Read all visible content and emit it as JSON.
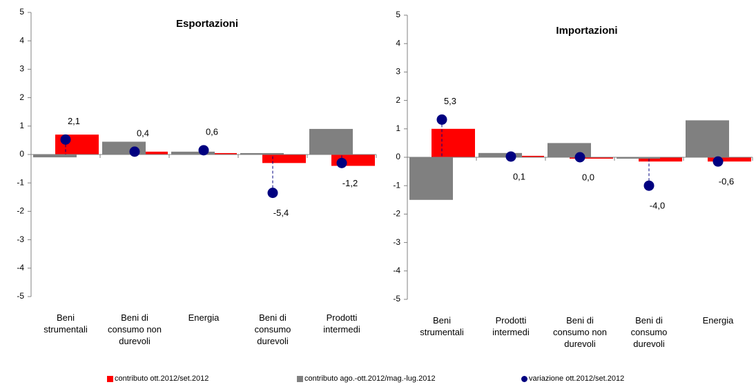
{
  "chart_data": [
    {
      "type": "bar",
      "title": "Esportazioni",
      "categories": [
        "Beni strumentali",
        "Beni di consumo non durevoli",
        "Energia",
        "Beni di consumo durevoli",
        "Prodotti intermedi"
      ],
      "series": [
        {
          "name": "contributo ott.2012/set.2012",
          "color": "#ff0000",
          "values": [
            0.7,
            0.1,
            0.05,
            -0.3,
            -0.4
          ]
        },
        {
          "name": "contributo ago.-ott.2012/mag.-lug.2012",
          "color": "#808080",
          "values": [
            -0.1,
            0.45,
            0.1,
            0.05,
            0.9
          ]
        },
        {
          "name": "variazione ott.2012/set.2012",
          "color": "#000080",
          "axis": "y2",
          "values": [
            2.1,
            0.4,
            0.6,
            -5.4,
            -1.2
          ],
          "value_labels": [
            "2,1",
            "0,4",
            "0,6",
            "-5,4",
            "-1,2"
          ]
        }
      ],
      "ylim": [
        -5,
        5
      ],
      "yticks": [
        -5,
        -4,
        -3,
        -2,
        -1,
        0,
        1,
        2,
        3,
        4,
        5
      ],
      "y2lim": [
        -20,
        20
      ]
    },
    {
      "type": "bar",
      "title": "Importazioni",
      "categories": [
        "Beni strumentali",
        "Prodotti intermedi",
        "Beni di consumo non durevoli",
        "Beni di consumo durevoli",
        "Energia"
      ],
      "series": [
        {
          "name": "contributo ott.2012/set.2012",
          "color": "#ff0000",
          "values": [
            1.0,
            0.05,
            -0.05,
            -0.15,
            -0.15
          ]
        },
        {
          "name": "contributo ago.-ott.2012/mag.-lug.2012",
          "color": "#808080",
          "values": [
            -1.5,
            0.15,
            0.5,
            -0.05,
            1.3
          ]
        },
        {
          "name": "variazione ott.2012/set.2012",
          "color": "#000080",
          "axis": "y2",
          "values": [
            5.3,
            0.1,
            0.0,
            -4.0,
            -0.6
          ],
          "value_labels": [
            "5,3",
            "0,1",
            "0,0",
            "-4,0",
            "-0,6"
          ]
        }
      ],
      "ylim": [
        -5,
        5
      ],
      "yticks": [
        -5,
        -4,
        -3,
        -2,
        -1,
        0,
        1,
        2,
        3,
        4,
        5
      ],
      "y2lim": [
        -20,
        20
      ]
    }
  ]
}
